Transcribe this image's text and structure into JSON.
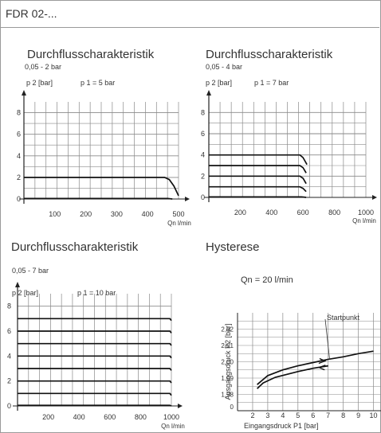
{
  "header": {
    "title": "FDR 02-..."
  },
  "colors": {
    "grid": "#8a8a8a",
    "line": "#111111"
  },
  "chart_data": [
    {
      "type": "line",
      "title": "Durchflusscharakteristik",
      "subtitle": "0,05 - 2 bar",
      "ylabel": "p 2 [bar]",
      "xlabel": "Qn l/min",
      "condition": "p 1 = 5 bar",
      "xlim": [
        0,
        500
      ],
      "ylim": [
        0,
        9
      ],
      "x_ticks": [
        100,
        200,
        300,
        400,
        500
      ],
      "y_ticks": [
        0,
        2,
        4,
        6,
        8
      ],
      "grid": true,
      "series": [
        {
          "values": [
            [
              0,
              0.05
            ],
            [
              465,
              0.05
            ],
            [
              480,
              0
            ]
          ]
        },
        {
          "values": [
            [
              0,
              2
            ],
            [
              455,
              2
            ],
            [
              470,
              1.8
            ],
            [
              485,
              1.2
            ],
            [
              500,
              0.3
            ]
          ]
        }
      ]
    },
    {
      "type": "line",
      "title": "Durchflusscharakteristik",
      "subtitle": "0,05 - 4 bar",
      "ylabel": "p 2 [bar]",
      "xlabel": "Qn l/min",
      "condition": "p 1 = 7 bar",
      "xlim": [
        0,
        1000
      ],
      "ylim": [
        0,
        9
      ],
      "x_ticks": [
        200,
        400,
        600,
        800,
        1000
      ],
      "y_ticks": [
        0,
        2,
        4,
        6,
        8
      ],
      "grid": true,
      "series": [
        {
          "values": [
            [
              0,
              0.05
            ],
            [
              590,
              0.05
            ],
            [
              620,
              0
            ]
          ]
        },
        {
          "values": [
            [
              0,
              1
            ],
            [
              580,
              1
            ],
            [
              600,
              0.85
            ],
            [
              620,
              0.55
            ]
          ]
        },
        {
          "values": [
            [
              0,
              2
            ],
            [
              580,
              2
            ],
            [
              600,
              1.8
            ],
            [
              620,
              1.3
            ]
          ]
        },
        {
          "values": [
            [
              0,
              3
            ],
            [
              580,
              3
            ],
            [
              600,
              2.8
            ],
            [
              620,
              2.3
            ]
          ]
        },
        {
          "values": [
            [
              0,
              4
            ],
            [
              580,
              4
            ],
            [
              600,
              3.75
            ],
            [
              625,
              3.1
            ]
          ]
        }
      ]
    },
    {
      "type": "line",
      "title": "Durchflusscharakteristik",
      "subtitle": "0,05 - 7 bar",
      "ylabel": "p 2 [bar]",
      "xlabel": "Qn l/min",
      "condition": "p 1 = 10 bar",
      "xlim": [
        0,
        1000
      ],
      "ylim": [
        0,
        9
      ],
      "x_ticks": [
        200,
        400,
        600,
        800,
        1000
      ],
      "y_ticks": [
        0,
        2,
        4,
        6,
        8
      ],
      "grid": true,
      "series": [
        {
          "values": [
            [
              0,
              0.05
            ],
            [
              990,
              0.05
            ],
            [
              1000,
              0
            ]
          ]
        },
        {
          "values": [
            [
              0,
              1
            ],
            [
              990,
              1
            ],
            [
              1000,
              0.85
            ]
          ]
        },
        {
          "values": [
            [
              0,
              2
            ],
            [
              990,
              2
            ],
            [
              1000,
              1.85
            ]
          ]
        },
        {
          "values": [
            [
              0,
              3
            ],
            [
              990,
              3
            ],
            [
              1000,
              2.85
            ]
          ]
        },
        {
          "values": [
            [
              0,
              4
            ],
            [
              990,
              4
            ],
            [
              1000,
              3.85
            ]
          ]
        },
        {
          "values": [
            [
              0,
              5
            ],
            [
              990,
              5
            ],
            [
              1000,
              4.85
            ]
          ]
        },
        {
          "values": [
            [
              0,
              6
            ],
            [
              990,
              6
            ],
            [
              1000,
              5.85
            ]
          ]
        },
        {
          "values": [
            [
              0,
              7
            ],
            [
              990,
              7
            ],
            [
              1000,
              6.85
            ]
          ]
        }
      ]
    },
    {
      "type": "line",
      "title": "Hysterese",
      "subtitle": "Qn = 20 l/min",
      "ylabel": "Ausgangsdruck P2 [bar]",
      "xlabel": "Eingangsdruck P1 [bar]",
      "annotation": "Startpunkt",
      "xlim": [
        1,
        10.5
      ],
      "ylim": [
        1.97,
        2.03
      ],
      "x_ticks": [
        2,
        3,
        4,
        5,
        6,
        7,
        8,
        9,
        10
      ],
      "y_ticks": [
        1.98,
        1.99,
        2.0,
        2.01,
        2.02
      ],
      "y_tick_labels": [
        "1,98",
        "1,99",
        "2,00",
        "2,01",
        "2,02"
      ],
      "x_zero_label": "0",
      "grid": true,
      "series": [
        {
          "values": [
            [
              2.3,
              1.986
            ],
            [
              3,
              1.9915
            ],
            [
              4,
              1.995
            ],
            [
              5,
              1.9975
            ],
            [
              6,
              1.9995
            ],
            [
              7,
              2.0015
            ],
            [
              8,
              2.003
            ],
            [
              9,
              2.005
            ],
            [
              10,
              2.0065
            ]
          ]
        },
        {
          "values": [
            [
              2.3,
              1.9835
            ],
            [
              2.7,
              1.987
            ],
            [
              3.5,
              1.9905
            ],
            [
              5,
              1.994
            ],
            [
              6,
              1.996
            ],
            [
              7,
              1.9975
            ]
          ]
        }
      ]
    }
  ]
}
